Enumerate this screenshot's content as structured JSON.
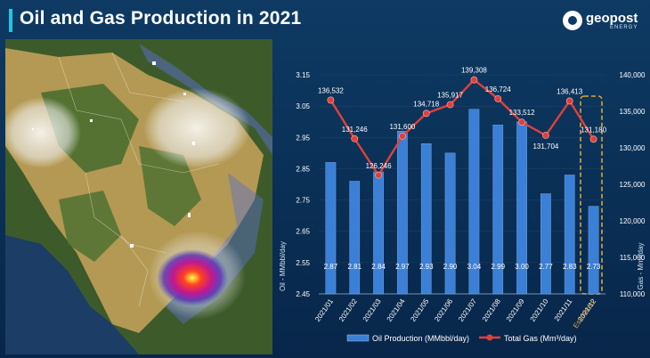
{
  "header": {
    "title": "Oil and Gas Production in 2021",
    "logo_text": "geopost",
    "logo_sub": "ENERGY"
  },
  "colors": {
    "bar": "#3b7fd6",
    "line": "#e0403a",
    "background": "#0b325a",
    "accent": "#1ec7e0",
    "estimated_box": "#d8a63a"
  },
  "chart_data": {
    "type": "bar",
    "categories": [
      "2021/01",
      "2021/02",
      "2021/03",
      "2021/04",
      "2021/05",
      "2021/06",
      "2021/07",
      "2021/08",
      "2021/09",
      "2021/10",
      "2021/11",
      "2021/12"
    ],
    "estimated_label": "Estimated",
    "series": [
      {
        "name": "Oil Production (MMbbl/day)",
        "type": "bar",
        "axis": "left",
        "values": [
          2.87,
          2.81,
          2.84,
          2.97,
          2.93,
          2.9,
          3.04,
          2.99,
          3.0,
          2.77,
          2.83,
          2.73
        ],
        "labels": [
          "2.87",
          "2.81",
          "2.84",
          "2.97",
          "2.93",
          "2.90",
          "3.04",
          "2.99",
          "3.00",
          "2.77",
          "2.83",
          "2.73"
        ]
      },
      {
        "name": "Total Gas (Mm³/day)",
        "type": "line",
        "axis": "right",
        "values": [
          136532,
          131246,
          126246,
          131600,
          134718,
          135917,
          139308,
          136724,
          133512,
          131704,
          136413,
          131180
        ],
        "labels": [
          "136,532",
          "131,246",
          "126,246",
          "131,600",
          "134,718",
          "135,917",
          "139,308",
          "136,724",
          "133,512",
          "131,704",
          "136,413",
          "131,180"
        ]
      }
    ],
    "ylabel": "Oil - MMbbl/day",
    "y2label": "Gas - Mm³/day",
    "ylim": [
      2.45,
      3.15
    ],
    "y2lim": [
      110000,
      140000
    ],
    "yticks": [
      "2.45",
      "2.55",
      "2.65",
      "2.75",
      "2.85",
      "2.95",
      "3.05",
      "3.15"
    ],
    "y2ticks": [
      "110,000",
      "115,000",
      "120,000",
      "125,000",
      "130,000",
      "135,000",
      "140,000"
    ],
    "legend": "bottom"
  }
}
